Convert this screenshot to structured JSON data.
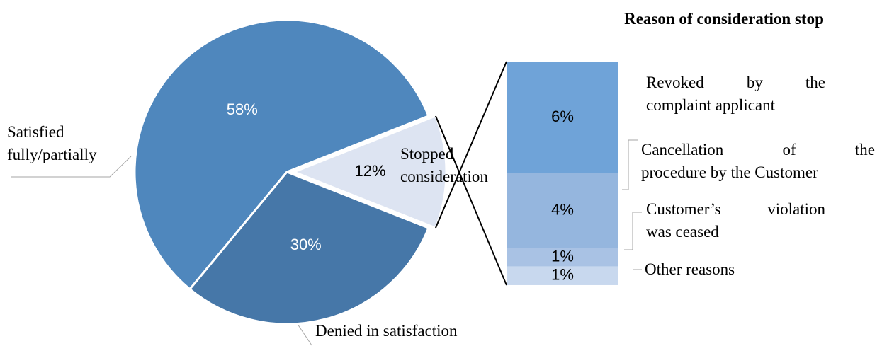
{
  "chart_data": [
    {
      "type": "pie",
      "categories": [
        "Satisfied fully/partially",
        "Denied in satisfaction",
        "Stopped consideration"
      ],
      "values": [
        58,
        30,
        12
      ],
      "value_labels": [
        "58%",
        "30%",
        "12%"
      ],
      "colors": [
        "#4f87bd",
        "#4677a8",
        "#dde4f2"
      ]
    },
    {
      "type": "stacked-bar",
      "title": "Reason of consideration stop",
      "categories": [
        "Revoked by the complaint applicant",
        "Cancellation of the procedure by the Customer",
        "Customer’s violation was ceased",
        "Other reasons"
      ],
      "values": [
        6,
        4,
        1,
        1
      ],
      "value_labels": [
        "6%",
        "4%",
        "1%",
        "1%"
      ],
      "colors": [
        "#6fa3d8",
        "#95b6de",
        "#a9c2e4",
        "#c8d8ee"
      ]
    }
  ]
}
